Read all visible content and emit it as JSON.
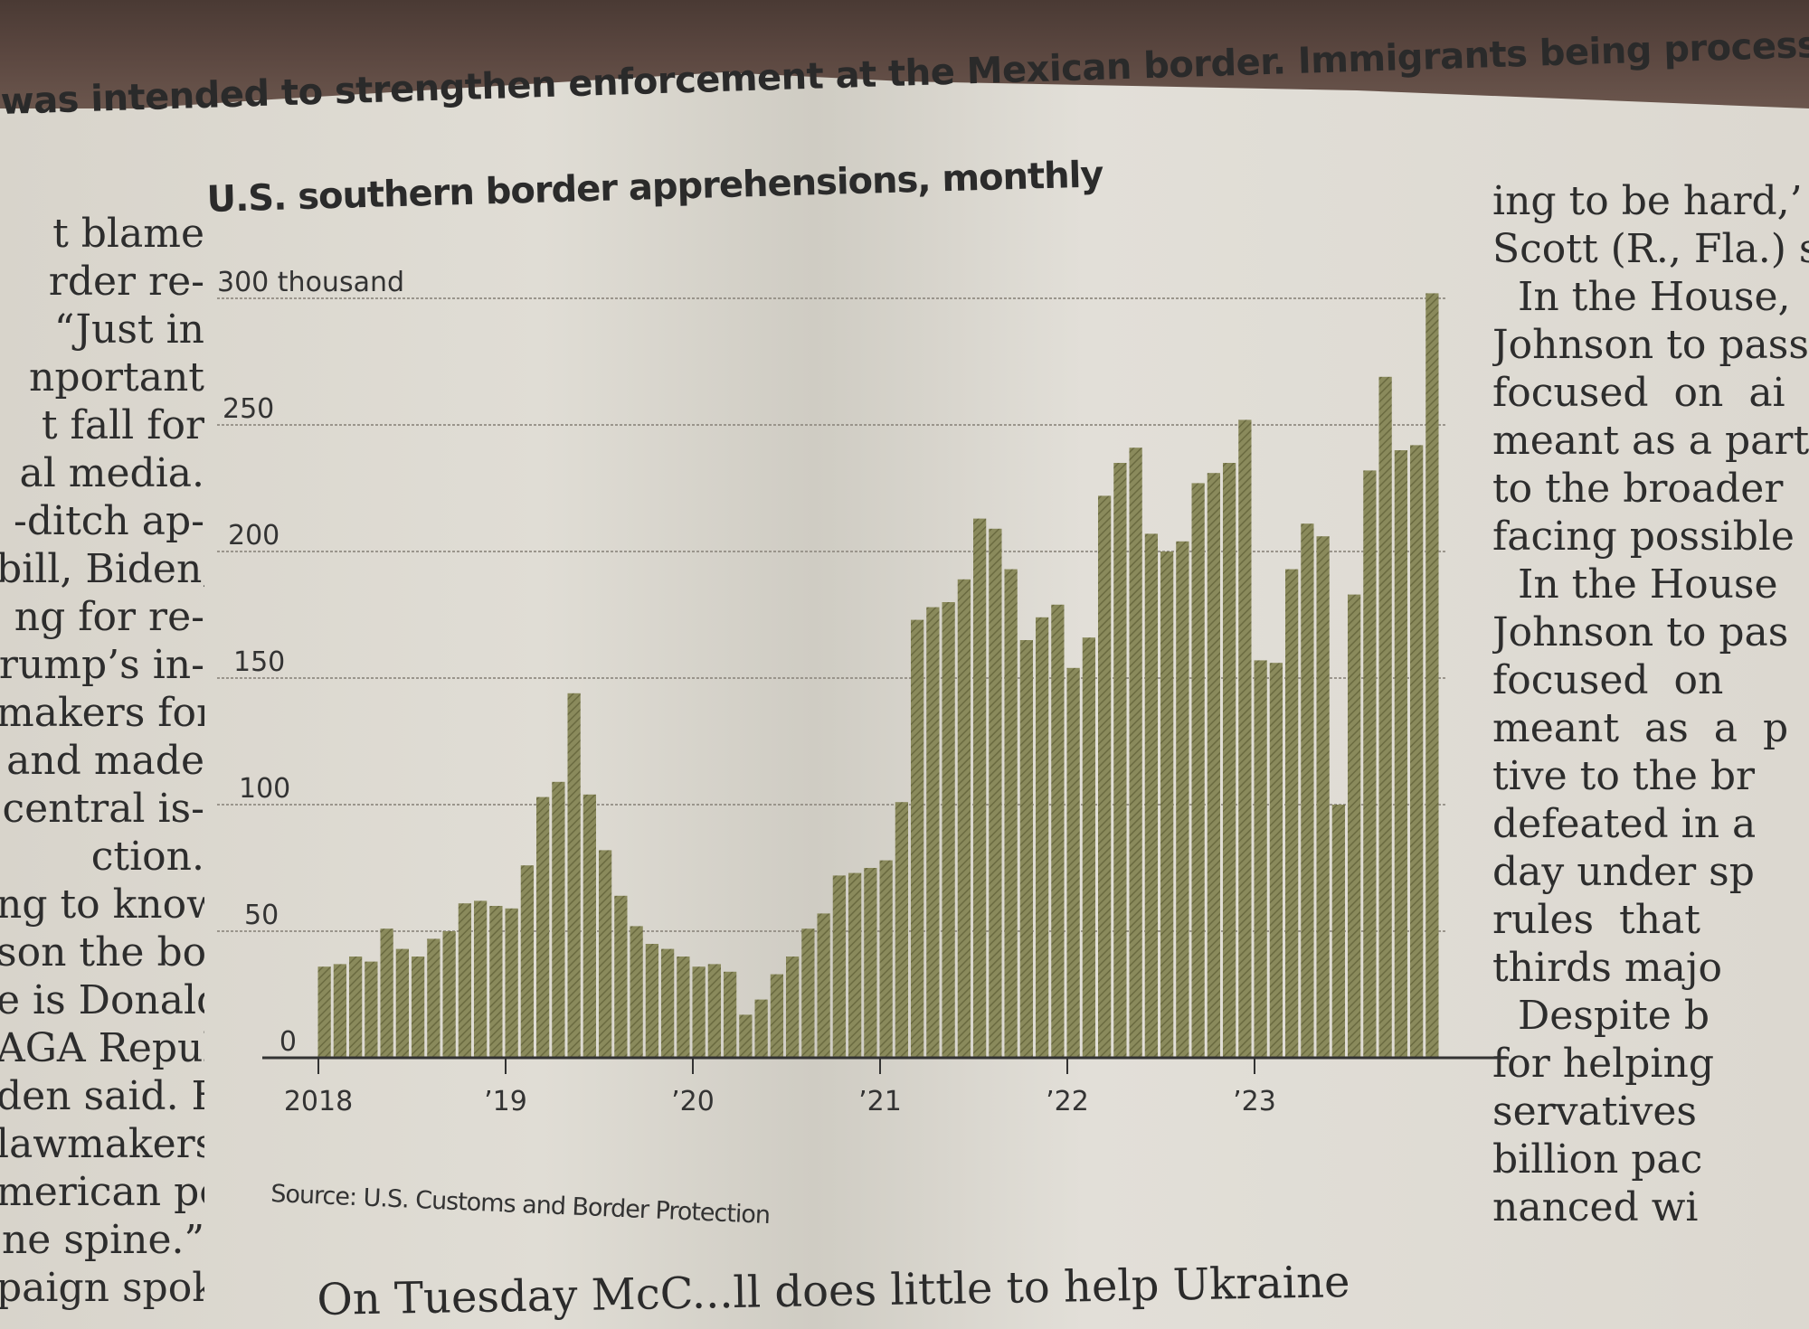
{
  "article": {
    "photo_caption": "was intended to strengthen enforcement at the Mexican border. Immigrants being processed",
    "left_column": [
      "t blame",
      "rder re-",
      "“Just in",
      "nportant",
      "t fall for",
      "al media.",
      "-ditch ap-",
      "bill, Biden,",
      "ng for re-",
      "rump’s in-",
      "makers for",
      "and made",
      "central is-",
      "ction.",
      "ng to know",
      "son the bor-",
      "e is Donald",
      "AGA Repub-",
      "den said. He",
      "lawmakers",
      "merican peo-",
      "ne spine.”",
      "paign spokes-"
    ],
    "right_column": [
      "ing to be hard,’",
      "Scott (R., Fla.) sa",
      "  In the House,",
      "Johnson to pass",
      "focused  on  ai",
      "meant as a part",
      "to the broader",
      "facing possible",
      "  In the House",
      "Johnson to pas",
      "focused  on",
      "meant  as  a  p",
      "tive to the br",
      "defeated in a",
      "day under sp",
      "rules  that",
      "thirds majo",
      "  Despite b",
      "for helping",
      "servatives",
      "billion pac",
      "nanced wi"
    ],
    "bottom_text": "On  Tuesday  McC...ll  does little to help Ukraine"
  },
  "chart_data": {
    "type": "bar",
    "title": "U.S. southern border apprehensions, monthly",
    "xlabel": "",
    "ylabel": "",
    "y_unit_label": "300 thousand",
    "ylim": [
      0,
      300
    ],
    "yticks": [
      0,
      50,
      100,
      150,
      200,
      250,
      300
    ],
    "ytick_labels": [
      "0",
      "50",
      "100",
      "150",
      "200",
      "250",
      "300 thousand"
    ],
    "grid": true,
    "bar_color": "#8a8a5c",
    "x_tick_labels": [
      {
        "label": "2018",
        "index": 0
      },
      {
        "label": "’19",
        "index": 12
      },
      {
        "label": "’20",
        "index": 24
      },
      {
        "label": "’21",
        "index": 36
      },
      {
        "label": "’22",
        "index": 48
      },
      {
        "label": "’23",
        "index": 60
      }
    ],
    "categories": [
      "2018-01",
      "2018-02",
      "2018-03",
      "2018-04",
      "2018-05",
      "2018-06",
      "2018-07",
      "2018-08",
      "2018-09",
      "2018-10",
      "2018-11",
      "2018-12",
      "2019-01",
      "2019-02",
      "2019-03",
      "2019-04",
      "2019-05",
      "2019-06",
      "2019-07",
      "2019-08",
      "2019-09",
      "2019-10",
      "2019-11",
      "2019-12",
      "2020-01",
      "2020-02",
      "2020-03",
      "2020-04",
      "2020-05",
      "2020-06",
      "2020-07",
      "2020-08",
      "2020-09",
      "2020-10",
      "2020-11",
      "2020-12",
      "2021-01",
      "2021-02",
      "2021-03",
      "2021-04",
      "2021-05",
      "2021-06",
      "2021-07",
      "2021-08",
      "2021-09",
      "2021-10",
      "2021-11",
      "2021-12",
      "2022-01",
      "2022-02",
      "2022-03",
      "2022-04",
      "2022-05",
      "2022-06",
      "2022-07",
      "2022-08",
      "2022-09",
      "2022-10",
      "2022-11",
      "2022-12",
      "2023-01",
      "2023-02",
      "2023-03",
      "2023-04",
      "2023-05",
      "2023-06",
      "2023-07",
      "2023-08",
      "2023-09",
      "2023-10",
      "2023-11",
      "2023-12"
    ],
    "values": [
      36,
      37,
      40,
      38,
      51,
      43,
      40,
      47,
      50,
      61,
      62,
      60,
      59,
      76,
      103,
      109,
      144,
      104,
      82,
      64,
      52,
      45,
      43,
      40,
      36,
      37,
      34,
      17,
      23,
      33,
      40,
      51,
      57,
      72,
      73,
      75,
      78,
      101,
      173,
      178,
      180,
      189,
      213,
      209,
      193,
      165,
      174,
      179,
      154,
      166,
      222,
      235,
      241,
      207,
      200,
      204,
      227,
      231,
      235,
      252,
      157,
      156,
      193,
      211,
      206,
      100,
      183,
      232,
      269,
      240,
      242,
      302
    ]
  }
}
